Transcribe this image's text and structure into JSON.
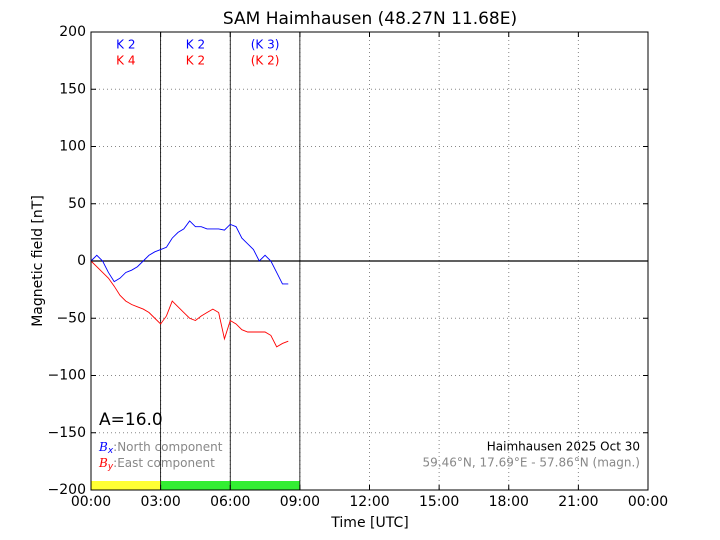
{
  "chart_data": {
    "type": "line",
    "title": "SAM Haimhausen (48.27N 11.68E)",
    "x_label": "Time [UTC]",
    "y_label": "Magnetic field [nT]",
    "x": [
      0,
      0.25,
      0.5,
      0.75,
      1,
      1.25,
      1.5,
      1.75,
      2,
      2.25,
      2.5,
      2.75,
      3,
      3.25,
      3.5,
      3.75,
      4,
      4.25,
      4.5,
      4.75,
      5,
      5.25,
      5.5,
      5.75,
      6,
      6.25,
      6.5,
      6.75,
      7,
      7.25,
      7.5,
      7.75,
      8,
      8.25,
      8.5
    ],
    "series": [
      {
        "name": "North component",
        "symbol": "B",
        "symbol_sub": "x",
        "color": "#0000ff",
        "values": [
          0,
          5,
          0,
          -10,
          -18,
          -15,
          -10,
          -8,
          -5,
          0,
          5,
          8,
          10,
          12,
          20,
          25,
          28,
          35,
          30,
          30,
          28,
          28,
          28,
          27,
          32,
          30,
          20,
          15,
          10,
          0,
          5,
          0,
          -10,
          -20,
          -20
        ]
      },
      {
        "name": "East component",
        "symbol": "B",
        "symbol_sub": "y",
        "color": "#ff0000",
        "values": [
          0,
          -5,
          -10,
          -15,
          -22,
          -30,
          -35,
          -38,
          -40,
          -42,
          -45,
          -50,
          -55,
          -48,
          -35,
          -40,
          -45,
          -50,
          -52,
          -48,
          -45,
          -42,
          -45,
          -68,
          -52,
          -55,
          -60,
          -62,
          -62,
          -62,
          -62,
          -65,
          -75,
          -72,
          -70
        ]
      }
    ],
    "xlim": [
      0,
      24
    ],
    "xticks": [
      {
        "value": 0,
        "label": "00:00"
      },
      {
        "value": 3,
        "label": "03:00"
      },
      {
        "value": 6,
        "label": "06:00"
      },
      {
        "value": 9,
        "label": "09:00"
      },
      {
        "value": 12,
        "label": "12:00"
      },
      {
        "value": 15,
        "label": "15:00"
      },
      {
        "value": 18,
        "label": "18:00"
      },
      {
        "value": 21,
        "label": "21:00"
      },
      {
        "value": 24,
        "label": "00:00"
      }
    ],
    "ylim": [
      -200,
      200
    ],
    "yticks": [
      {
        "value": -200,
        "label": "−200"
      },
      {
        "value": -150,
        "label": "−150"
      },
      {
        "value": -100,
        "label": "−100"
      },
      {
        "value": -50,
        "label": "−50"
      },
      0,
      50,
      100,
      150,
      200
    ],
    "grid": true,
    "interval_lines": [
      3,
      6,
      9
    ],
    "k_indices": [
      {
        "start": 0,
        "end": 3,
        "north": "K 2",
        "east": "K 4"
      },
      {
        "start": 3,
        "end": 6,
        "north": "K 2",
        "east": "K 2"
      },
      {
        "start": 6,
        "end": 9,
        "north": "(K 3)",
        "east": "(K 2)"
      }
    ],
    "activity_bar": [
      {
        "start": 0,
        "end": 3,
        "color": "#ffff33"
      },
      {
        "start": 3,
        "end": 9,
        "color": "#33ee33"
      }
    ],
    "a_index": "A=16.0",
    "station_date": "Haimhausen 2025 Oct 30",
    "coordinates": "59.46°N, 17.69°E - 57.86°N (magn.)"
  }
}
